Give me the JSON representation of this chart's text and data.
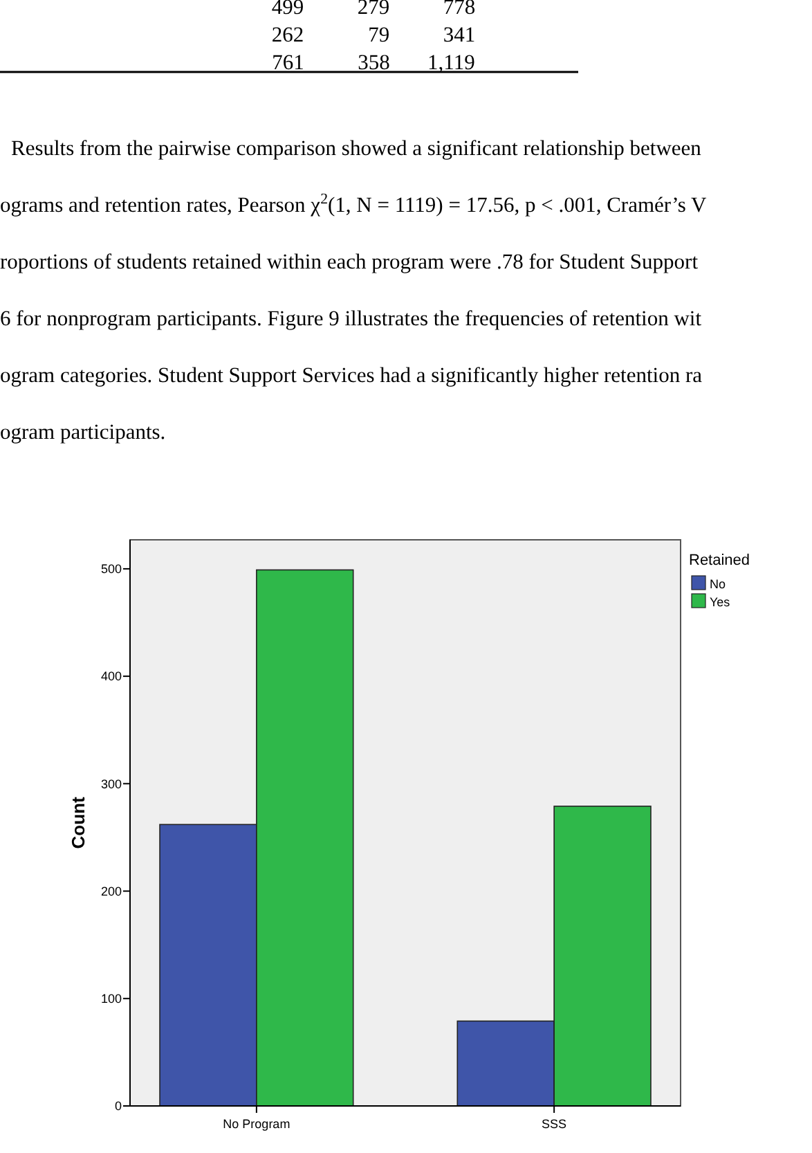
{
  "chart_data": {
    "type": "bar",
    "ylabel": "Count",
    "legend_title": "Retained",
    "legend": "right",
    "categories": [
      "No Program",
      "SSS"
    ],
    "series": [
      {
        "name": "No",
        "color": "#3f55a9",
        "values": [
          262,
          79
        ]
      },
      {
        "name": "Yes",
        "color": "#2fb84a",
        "values": [
          499,
          279
        ]
      }
    ],
    "ylim": [
      0,
      527
    ],
    "yticks": [
      0,
      100,
      200,
      300,
      400,
      500
    ],
    "grid": false,
    "annotations": [
      "499          279          778",
      "262            79          341",
      "761          358       1,119",
      "Results from the pairwise comparison showed a significant relationship between",
      "ograms and retention rates, Pearson χ$^{2}$(1, N = 1119) = 17.56, p < .001, Cramér’s V",
      "roportions of students retained within each program were .78 for Student Support",
      "6 for nonprogram participants. Figure 9 illustrates the frequencies of retention wit",
      "ogram categories. Student Support Services had a significantly higher retention ra",
      "ogram participants."
    ]
  }
}
